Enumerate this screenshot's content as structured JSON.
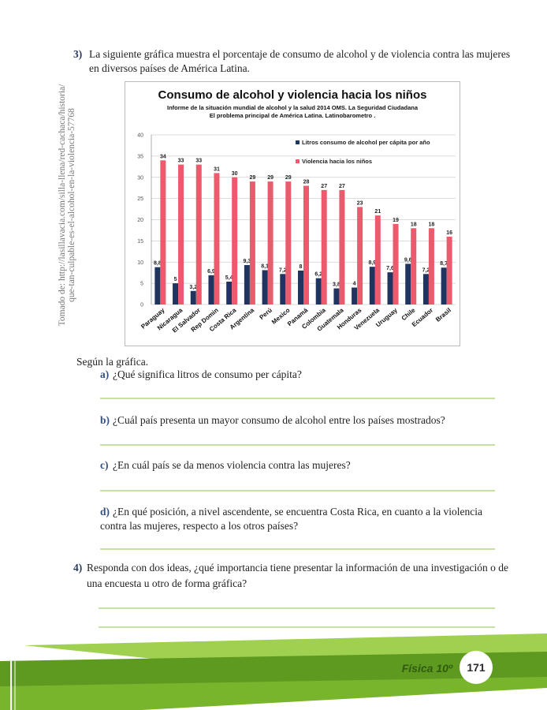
{
  "question_3": {
    "number": "3)",
    "lines": [
      "La siguiente gráfica muestra el porcentaje de consumo de alcohol y de violencia contra las mujeres",
      "en diversos países de América Latina."
    ]
  },
  "source_note": {
    "lines": [
      "Tomado de: http://lasillavacia.com/silla-llena/red-cachaca/historia/",
      "que-tan-culpable-es-el-alcohol-en-la-violencia-57768"
    ]
  },
  "chart_data": {
    "type": "bar",
    "title": "Consumo de alcohol y violencia hacia los niños",
    "subtitle": [
      "Informe de la situación mundial de alcohol y la salud 2014 OMS.  La Seguridad Ciudadana",
      "El problema principal de América Latina. Latinobarometro ."
    ],
    "categories": [
      "Paraguay",
      "Nicaragua",
      "El Salvador",
      "Rep Domin",
      "Costa Rica",
      "Argentina",
      "Perú",
      "Mexico",
      "Panamá",
      "Colombia",
      "Guatemala",
      "Honduras",
      "Venezuela",
      "Uruguay",
      "Chile",
      "Ecuador",
      "Brasil"
    ],
    "series": [
      {
        "name": "Litros consumo de alcohol per cápita por año",
        "color": "#1f3560",
        "values": [
          8.8,
          5,
          3.2,
          6.9,
          5.4,
          9.3,
          8.1,
          7.2,
          8,
          6.2,
          3.8,
          4,
          8.9,
          7.6,
          9.6,
          7.2,
          8.7
        ],
        "value_labels": [
          "8,8",
          "5",
          "3,2",
          "6,9",
          "5,4",
          "9,3",
          "8,1",
          "7,2",
          "8",
          "6,2",
          "3,8",
          "4",
          "8,9",
          "7,6",
          "9,6",
          "7,2",
          "8,7"
        ]
      },
      {
        "name": "Violencia hacia los niños",
        "color": "#ec5a6e",
        "values": [
          34,
          33,
          33,
          31,
          30,
          29,
          29,
          29,
          28,
          27,
          27,
          23,
          21,
          19,
          18,
          18,
          16
        ]
      }
    ],
    "ylim": [
      0,
      40
    ],
    "yticks": [
      0,
      5,
      10,
      15,
      20,
      25,
      30,
      35,
      40
    ],
    "grid": true,
    "legend": "top-right"
  },
  "questions": {
    "intro": "Según la gráfica.",
    "items": [
      {
        "label": "a)",
        "lines": [
          "¿Qué significa litros de consumo per cápita?"
        ]
      },
      {
        "label": "b)",
        "lines": [
          "¿Cuál país presenta un mayor consumo de alcohol entre los países mostrados?"
        ]
      },
      {
        "label": "c)",
        "lines": [
          "¿En cuál país se da menos violencia contra las mujeres?"
        ]
      },
      {
        "label": "d)",
        "lines": [
          "¿En qué posición, a nivel ascendente, se encuentra Costa Rica, en cuanto a la violencia",
          "contra las mujeres, respecto a los otros países?"
        ]
      }
    ]
  },
  "question_4": {
    "number": "4)",
    "lines": [
      "Responda con dos ideas, ¿qué importancia tiene presentar la información de una investigación o de",
      "una encuesta u otro de forma gráfica?"
    ]
  },
  "footer": {
    "subject": "Física 10º",
    "page": "171"
  }
}
